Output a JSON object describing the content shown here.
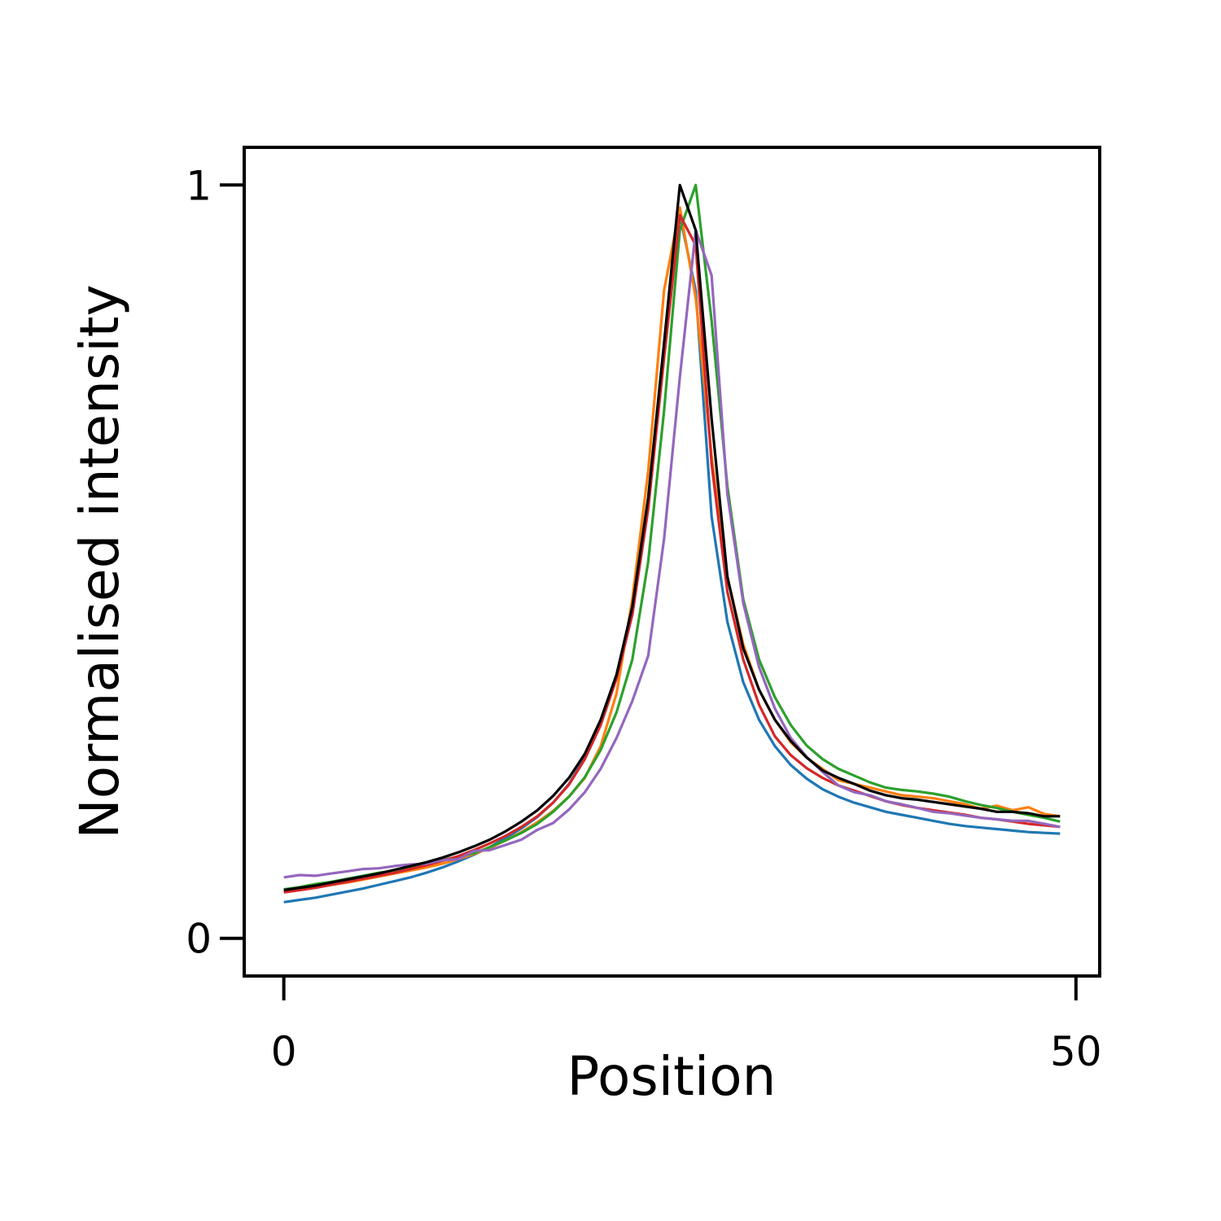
{
  "chart_data": {
    "type": "line",
    "title": "",
    "xlabel": "Position",
    "ylabel": "Normalised intensity",
    "xlim": [
      -2.5,
      51.5
    ],
    "ylim": [
      -0.05,
      1.05
    ],
    "xticks": [
      0,
      50
    ],
    "xtick_labels": [
      "0",
      "50"
    ],
    "yticks": [
      0,
      1
    ],
    "ytick_labels": [
      "0",
      "1"
    ],
    "grid": false,
    "legend": "none",
    "series": [
      {
        "color": "#1f77b4",
        "x": [
          0,
          1,
          2,
          3,
          4,
          5,
          6,
          7,
          8,
          9,
          10,
          11,
          12,
          13,
          14,
          15,
          16,
          17,
          18,
          19,
          20,
          21,
          22,
          23,
          24,
          25,
          26,
          27,
          28,
          29,
          30,
          31,
          32,
          33,
          34,
          35,
          36,
          37,
          38,
          39,
          40,
          41,
          42,
          43,
          44,
          45,
          46,
          47,
          48,
          49
        ],
        "y": [
          0.048,
          0.051,
          0.054,
          0.058,
          0.062,
          0.066,
          0.071,
          0.076,
          0.081,
          0.087,
          0.094,
          0.102,
          0.111,
          0.121,
          0.133,
          0.146,
          0.161,
          0.18,
          0.205,
          0.24,
          0.285,
          0.345,
          0.43,
          0.57,
          0.78,
          0.96,
          0.86,
          0.56,
          0.42,
          0.34,
          0.29,
          0.255,
          0.23,
          0.212,
          0.198,
          0.188,
          0.18,
          0.174,
          0.168,
          0.164,
          0.16,
          0.156,
          0.152,
          0.149,
          0.147,
          0.145,
          0.143,
          0.141,
          0.14,
          0.139
        ]
      },
      {
        "color": "#ff7f0e",
        "x": [
          0,
          1,
          2,
          3,
          4,
          5,
          6,
          7,
          8,
          9,
          10,
          11,
          12,
          13,
          14,
          15,
          16,
          17,
          18,
          19,
          20,
          21,
          22,
          23,
          24,
          25,
          26,
          27,
          28,
          29,
          30,
          31,
          32,
          33,
          34,
          35,
          36,
          37,
          38,
          39,
          40,
          41,
          42,
          43,
          44,
          45,
          46,
          47,
          48,
          49
        ],
        "y": [
          0.062,
          0.065,
          0.068,
          0.071,
          0.074,
          0.078,
          0.082,
          0.086,
          0.09,
          0.094,
          0.099,
          0.105,
          0.112,
          0.12,
          0.13,
          0.141,
          0.154,
          0.169,
          0.188,
          0.213,
          0.255,
          0.325,
          0.45,
          0.62,
          0.86,
          0.97,
          0.85,
          0.64,
          0.48,
          0.39,
          0.33,
          0.29,
          0.26,
          0.24,
          0.225,
          0.21,
          0.205,
          0.2,
          0.195,
          0.19,
          0.188,
          0.186,
          0.182,
          0.178,
          0.172,
          0.176,
          0.17,
          0.174,
          0.165,
          0.162
        ]
      },
      {
        "color": "#2ca02c",
        "x": [
          0,
          1,
          2,
          3,
          4,
          5,
          6,
          7,
          8,
          9,
          10,
          11,
          12,
          13,
          14,
          15,
          16,
          17,
          18,
          19,
          20,
          21,
          22,
          23,
          24,
          25,
          26,
          27,
          28,
          29,
          30,
          31,
          32,
          33,
          34,
          35,
          36,
          37,
          38,
          39,
          40,
          41,
          42,
          43,
          44,
          45,
          46,
          47,
          48,
          49
        ],
        "y": [
          0.065,
          0.068,
          0.072,
          0.075,
          0.079,
          0.083,
          0.087,
          0.09,
          0.094,
          0.098,
          0.104,
          0.108,
          0.113,
          0.121,
          0.13,
          0.14,
          0.152,
          0.168,
          0.188,
          0.214,
          0.25,
          0.3,
          0.37,
          0.5,
          0.7,
          0.94,
          1.0,
          0.82,
          0.6,
          0.45,
          0.37,
          0.32,
          0.283,
          0.256,
          0.238,
          0.225,
          0.216,
          0.207,
          0.2,
          0.197,
          0.195,
          0.192,
          0.188,
          0.182,
          0.177,
          0.173,
          0.168,
          0.164,
          0.16,
          0.155
        ]
      },
      {
        "color": "#d62728",
        "x": [
          0,
          1,
          2,
          3,
          4,
          5,
          6,
          7,
          8,
          9,
          10,
          11,
          12,
          13,
          14,
          15,
          16,
          17,
          18,
          19,
          20,
          21,
          22,
          23,
          24,
          25,
          26,
          27,
          28,
          29,
          30,
          31,
          32,
          33,
          34,
          35,
          36,
          37,
          38,
          39,
          40,
          41,
          42,
          43,
          44,
          45,
          46,
          47,
          48,
          49
        ],
        "y": [
          0.061,
          0.064,
          0.067,
          0.071,
          0.075,
          0.079,
          0.083,
          0.087,
          0.092,
          0.097,
          0.103,
          0.109,
          0.117,
          0.126,
          0.136,
          0.148,
          0.162,
          0.18,
          0.204,
          0.238,
          0.283,
          0.345,
          0.43,
          0.57,
          0.77,
          0.96,
          0.92,
          0.63,
          0.46,
          0.37,
          0.31,
          0.268,
          0.243,
          0.226,
          0.213,
          0.203,
          0.196,
          0.189,
          0.182,
          0.177,
          0.173,
          0.17,
          0.167,
          0.164,
          0.16,
          0.158,
          0.155,
          0.152,
          0.15,
          0.148
        ]
      },
      {
        "color": "#9467bd",
        "x": [
          0,
          1,
          2,
          3,
          4,
          5,
          6,
          7,
          8,
          9,
          10,
          11,
          12,
          13,
          14,
          15,
          16,
          17,
          18,
          19,
          20,
          21,
          22,
          23,
          24,
          25,
          26,
          27,
          28,
          29,
          30,
          31,
          32,
          33,
          34,
          35,
          36,
          37,
          38,
          39,
          40,
          41,
          42,
          43,
          44,
          45,
          46,
          47,
          48,
          49
        ],
        "y": [
          0.081,
          0.084,
          0.083,
          0.086,
          0.089,
          0.092,
          0.093,
          0.096,
          0.098,
          0.099,
          0.104,
          0.105,
          0.116,
          0.117,
          0.124,
          0.131,
          0.144,
          0.153,
          0.171,
          0.194,
          0.225,
          0.266,
          0.315,
          0.375,
          0.53,
          0.745,
          0.94,
          0.88,
          0.59,
          0.445,
          0.36,
          0.305,
          0.266,
          0.241,
          0.221,
          0.203,
          0.194,
          0.19,
          0.182,
          0.178,
          0.173,
          0.168,
          0.166,
          0.163,
          0.16,
          0.158,
          0.156,
          0.156,
          0.152,
          0.148
        ]
      },
      {
        "color": "#000000",
        "x": [
          0,
          1,
          2,
          3,
          4,
          5,
          6,
          7,
          8,
          9,
          10,
          11,
          12,
          13,
          14,
          15,
          16,
          17,
          18,
          19,
          20,
          21,
          22,
          23,
          24,
          25,
          26,
          27,
          28,
          29,
          30,
          31,
          32,
          33,
          34,
          35,
          36,
          37,
          38,
          39,
          40,
          41,
          42,
          43,
          44,
          45,
          46,
          47,
          48,
          49
        ],
        "y": [
          0.064,
          0.067,
          0.07,
          0.074,
          0.078,
          0.082,
          0.086,
          0.091,
          0.096,
          0.101,
          0.107,
          0.114,
          0.122,
          0.131,
          0.142,
          0.155,
          0.17,
          0.189,
          0.213,
          0.245,
          0.29,
          0.35,
          0.44,
          0.585,
          0.79,
          1.0,
          0.94,
          0.69,
          0.48,
          0.385,
          0.33,
          0.29,
          0.262,
          0.24,
          0.223,
          0.213,
          0.205,
          0.196,
          0.19,
          0.186,
          0.184,
          0.181,
          0.178,
          0.175,
          0.172,
          0.168,
          0.168,
          0.166,
          0.162,
          0.162
        ]
      }
    ]
  }
}
